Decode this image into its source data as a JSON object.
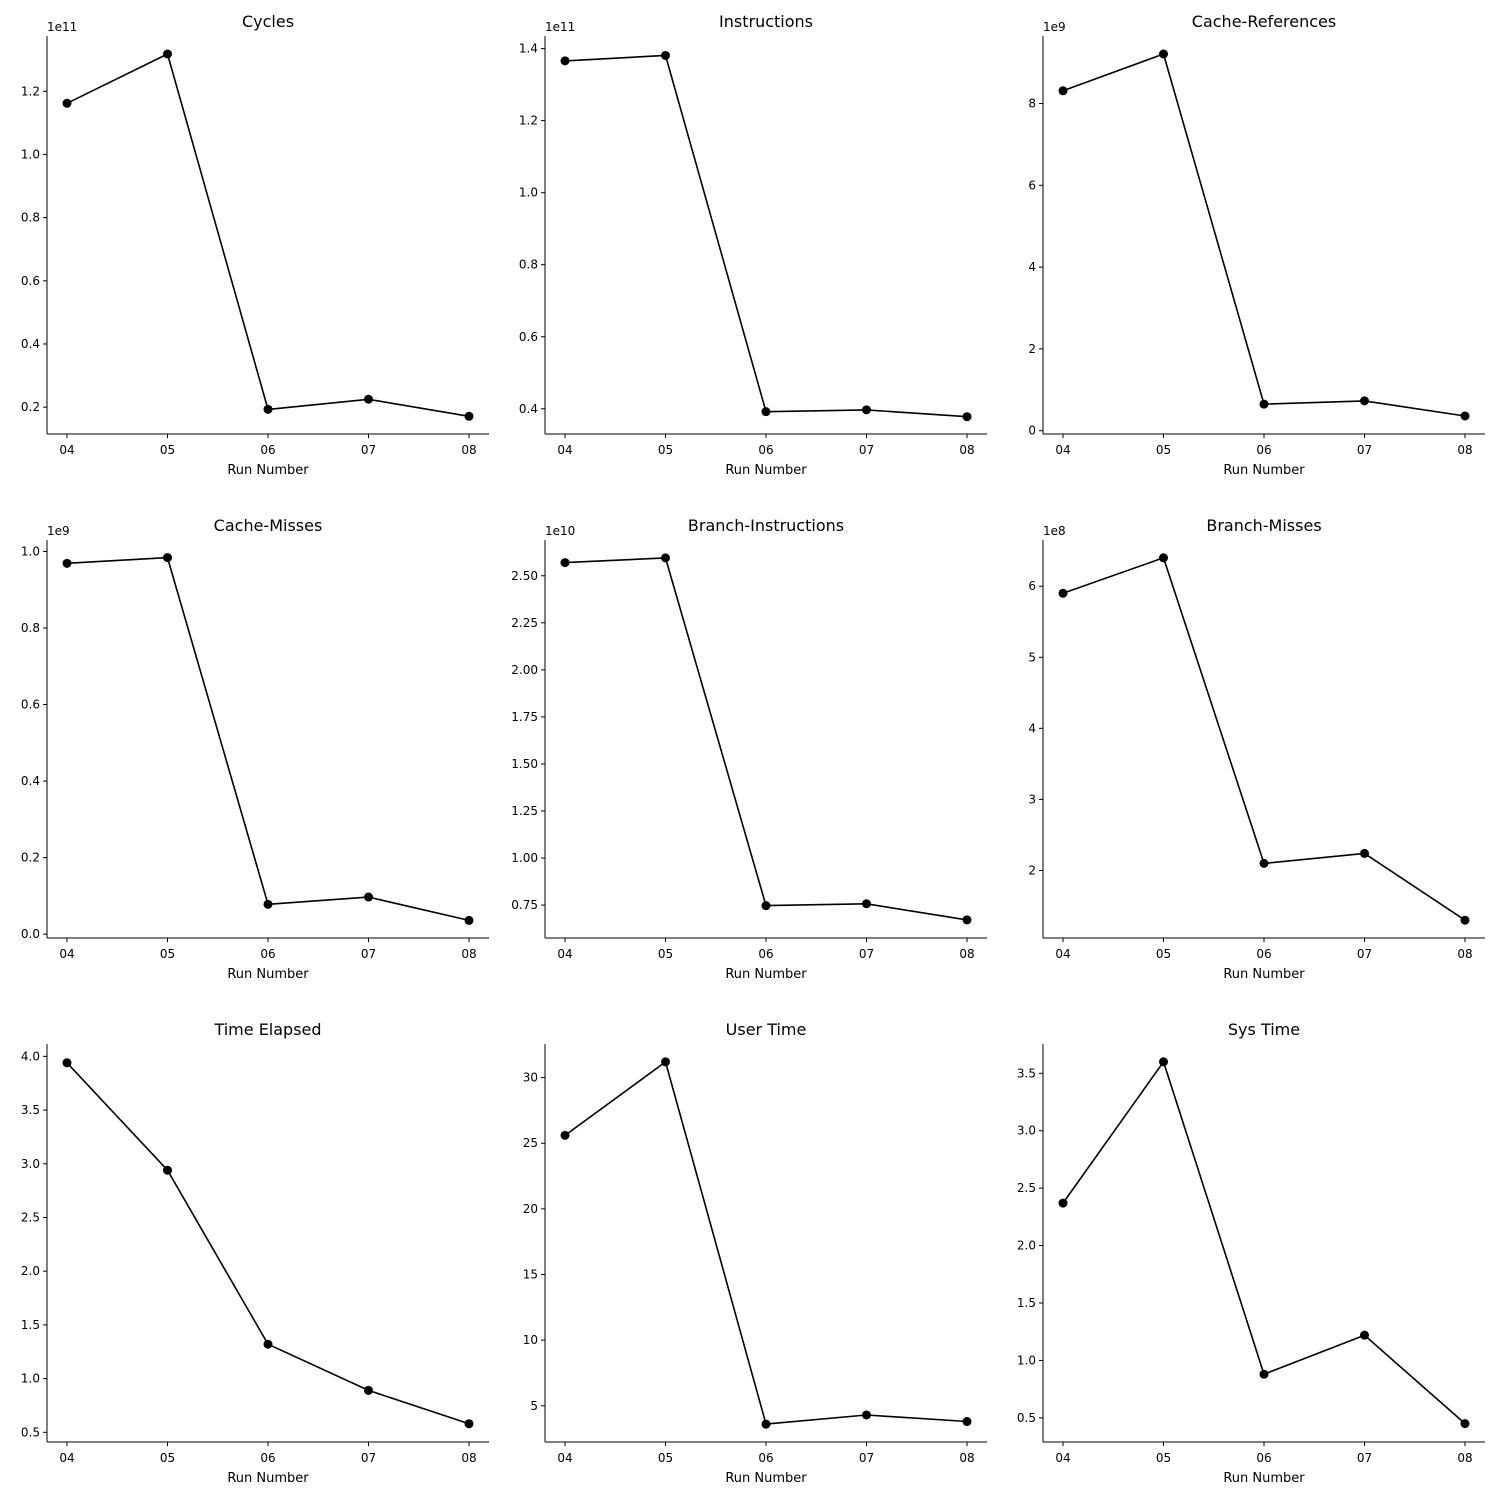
{
  "chart_data": [
    {
      "type": "line",
      "title": "Cycles",
      "xlabel": "Run Number",
      "ylabel": "",
      "offset_text": "1e11",
      "x": [
        "04",
        "05",
        "06",
        "07",
        "08"
      ],
      "values": [
        1.162,
        1.318,
        0.193,
        0.225,
        0.171
      ],
      "ylim": [
        0.115,
        1.375
      ],
      "yticks": [
        0.2,
        0.4,
        0.6,
        0.8,
        1.0,
        1.2
      ],
      "ytick_labels": [
        "0.2",
        "0.4",
        "0.6",
        "0.8",
        "1.0",
        "1.2"
      ]
    },
    {
      "type": "line",
      "title": "Instructions",
      "xlabel": "Run Number",
      "ylabel": "",
      "offset_text": "1e11",
      "x": [
        "04",
        "05",
        "06",
        "07",
        "08"
      ],
      "values": [
        1.366,
        1.381,
        0.392,
        0.397,
        0.378
      ],
      "ylim": [
        0.33,
        1.435
      ],
      "yticks": [
        0.4,
        0.6,
        0.8,
        1.0,
        1.2,
        1.4
      ],
      "ytick_labels": [
        "0.4",
        "0.6",
        "0.8",
        "1.0",
        "1.2",
        "1.4"
      ]
    },
    {
      "type": "line",
      "title": "Cache-References",
      "xlabel": "Run Number",
      "ylabel": "",
      "offset_text": "1e9",
      "x": [
        "04",
        "05",
        "06",
        "07",
        "08"
      ],
      "values": [
        8.31,
        9.21,
        0.65,
        0.73,
        0.36
      ],
      "ylim": [
        -0.08,
        9.65
      ],
      "yticks": [
        0,
        2,
        4,
        6,
        8
      ],
      "ytick_labels": [
        "0",
        "2",
        "4",
        "6",
        "8"
      ]
    },
    {
      "type": "line",
      "title": "Cache-Misses",
      "xlabel": "Run Number",
      "ylabel": "",
      "offset_text": "1e9",
      "x": [
        "04",
        "05",
        "06",
        "07",
        "08"
      ],
      "values": [
        0.969,
        0.984,
        0.078,
        0.097,
        0.036
      ],
      "ylim": [
        -0.01,
        1.03
      ],
      "yticks": [
        0.0,
        0.2,
        0.4,
        0.6,
        0.8,
        1.0
      ],
      "ytick_labels": [
        "0.0",
        "0.2",
        "0.4",
        "0.6",
        "0.8",
        "1.0"
      ]
    },
    {
      "type": "line",
      "title": "Branch-Instructions",
      "xlabel": "Run Number",
      "ylabel": "",
      "offset_text": "1e10",
      "x": [
        "04",
        "05",
        "06",
        "07",
        "08"
      ],
      "values": [
        2.57,
        2.595,
        0.747,
        0.757,
        0.671
      ],
      "ylim": [
        0.575,
        2.69
      ],
      "yticks": [
        0.75,
        1.0,
        1.25,
        1.5,
        1.75,
        2.0,
        2.25,
        2.5
      ],
      "ytick_labels": [
        "0.75",
        "1.00",
        "1.25",
        "1.50",
        "1.75",
        "2.00",
        "2.25",
        "2.50"
      ]
    },
    {
      "type": "line",
      "title": "Branch-Misses",
      "xlabel": "Run Number",
      "ylabel": "",
      "offset_text": "1e8",
      "x": [
        "04",
        "05",
        "06",
        "07",
        "08"
      ],
      "values": [
        5.9,
        6.4,
        2.1,
        2.24,
        1.3
      ],
      "ylim": [
        1.05,
        6.65
      ],
      "yticks": [
        2,
        3,
        4,
        5,
        6
      ],
      "ytick_labels": [
        "2",
        "3",
        "4",
        "5",
        "6"
      ]
    },
    {
      "type": "line",
      "title": "Time Elapsed",
      "xlabel": "Run Number",
      "ylabel": "",
      "offset_text": "",
      "x": [
        "04",
        "05",
        "06",
        "07",
        "08"
      ],
      "values": [
        3.94,
        2.94,
        1.32,
        0.89,
        0.58
      ],
      "ylim": [
        0.41,
        4.115
      ],
      "yticks": [
        0.5,
        1.0,
        1.5,
        2.0,
        2.5,
        3.0,
        3.5,
        4.0
      ],
      "ytick_labels": [
        "0.5",
        "1.0",
        "1.5",
        "2.0",
        "2.5",
        "3.0",
        "3.5",
        "4.0"
      ]
    },
    {
      "type": "line",
      "title": "User Time",
      "xlabel": "Run Number",
      "ylabel": "",
      "offset_text": "",
      "x": [
        "04",
        "05",
        "06",
        "07",
        "08"
      ],
      "values": [
        25.6,
        31.2,
        3.6,
        4.3,
        3.8
      ],
      "ylim": [
        2.24,
        32.56
      ],
      "yticks": [
        5,
        10,
        15,
        20,
        25,
        30
      ],
      "ytick_labels": [
        "5",
        "10",
        "15",
        "20",
        "25",
        "30"
      ]
    },
    {
      "type": "line",
      "title": "Sys Time",
      "xlabel": "Run Number",
      "ylabel": "",
      "offset_text": "",
      "x": [
        "04",
        "05",
        "06",
        "07",
        "08"
      ],
      "values": [
        2.37,
        3.6,
        0.88,
        1.22,
        0.45
      ],
      "ylim": [
        0.29,
        3.755
      ],
      "yticks": [
        0.5,
        1.0,
        1.5,
        2.0,
        2.5,
        3.0,
        3.5
      ],
      "ytick_labels": [
        "0.5",
        "1.0",
        "1.5",
        "2.0",
        "2.5",
        "3.0",
        "3.5"
      ]
    }
  ]
}
